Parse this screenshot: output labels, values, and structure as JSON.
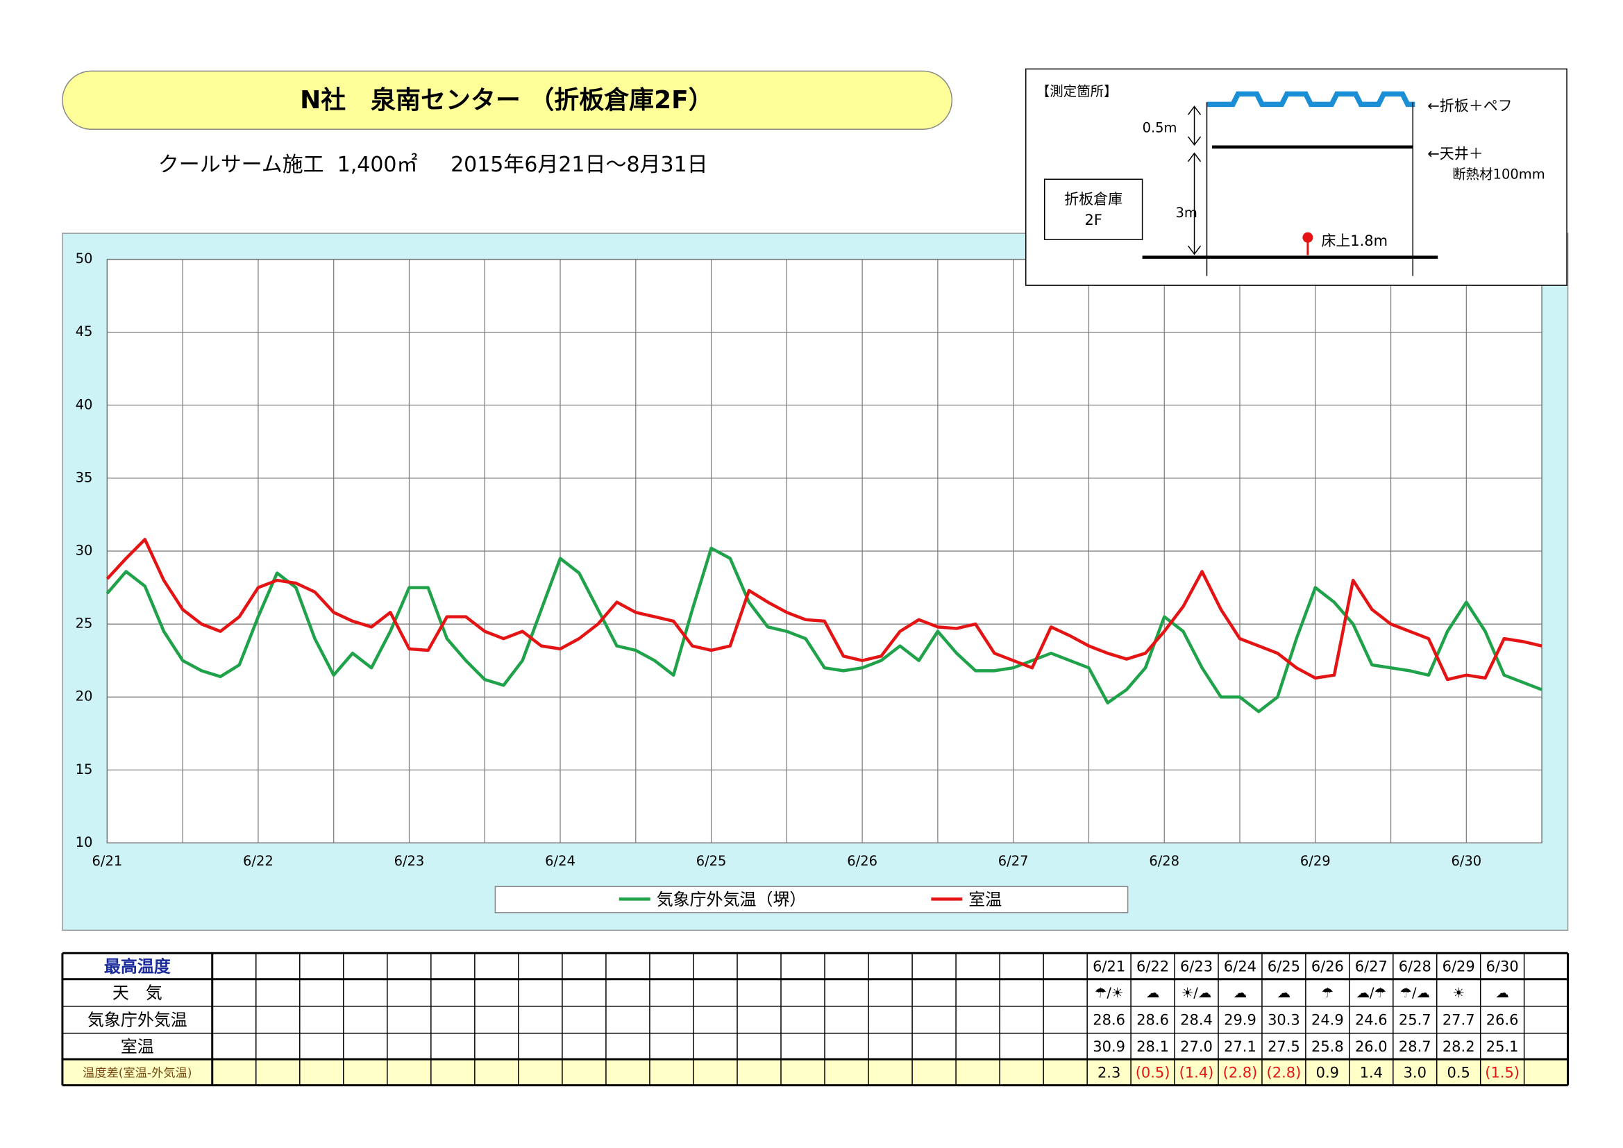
{
  "header": {
    "title": "N社　泉南センター （折板倉庫2F）",
    "subtitle": "クールサーム施工  1,400㎡     2015年6月21日～8月31日"
  },
  "diagram": {
    "title": "【測定箇所】",
    "roof": "←折板＋ペフ",
    "gap": "0.5m",
    "ceiling": "←天井＋",
    "insulation": "断熱材100mm",
    "room": "折板倉庫",
    "floor": "2F",
    "height": "3m",
    "sensor": "床上1.8m"
  },
  "chart_data": {
    "type": "line",
    "grid": true,
    "legend": "bottom",
    "x": [
      0,
      0.125,
      0.25,
      0.375,
      0.5,
      0.625,
      0.75,
      0.875,
      1,
      1.125,
      1.25,
      1.375,
      1.5,
      1.625,
      1.75,
      1.875,
      2,
      2.125,
      2.25,
      2.375,
      2.5,
      2.625,
      2.75,
      2.875,
      3,
      3.125,
      3.25,
      3.375,
      3.5,
      3.625,
      3.75,
      3.875,
      4,
      4.125,
      4.25,
      4.375,
      4.5,
      4.625,
      4.75,
      4.875,
      5,
      5.125,
      5.25,
      5.375,
      5.5,
      5.625,
      5.75,
      5.875,
      6,
      6.125,
      6.25,
      6.375,
      6.5,
      6.625,
      6.75,
      6.875,
      7,
      7.125,
      7.25,
      7.375,
      7.5,
      7.625,
      7.75,
      7.875,
      8,
      8.125,
      8.25,
      8.375,
      8.5,
      8.625,
      8.75,
      8.875,
      9,
      9.125,
      9.25,
      9.375,
      9.5
    ],
    "xlim": [
      0,
      9.5
    ],
    "xticks": [
      {
        "value": 0,
        "label": "6/21"
      },
      {
        "value": 1,
        "label": "6/22"
      },
      {
        "value": 2,
        "label": "6/23"
      },
      {
        "value": 3,
        "label": "6/24"
      },
      {
        "value": 4,
        "label": "6/25"
      },
      {
        "value": 5,
        "label": "6/26"
      },
      {
        "value": 6,
        "label": "6/27"
      },
      {
        "value": 7,
        "label": "6/28"
      },
      {
        "value": 8,
        "label": "6/29"
      },
      {
        "value": 9,
        "label": "6/30"
      }
    ],
    "ylim": [
      10,
      50
    ],
    "yticks": [
      10,
      15,
      20,
      25,
      30,
      35,
      40,
      45,
      50
    ],
    "series": [
      {
        "name": "気象庁外気温（堺）",
        "color": "#1fa24a",
        "values": [
          27.1,
          28.6,
          27.6,
          24.5,
          22.5,
          21.8,
          21.4,
          22.2,
          25.5,
          28.5,
          27.5,
          24.0,
          21.5,
          23.0,
          22.0,
          24.5,
          27.5,
          27.5,
          24.0,
          22.5,
          21.2,
          20.8,
          22.5,
          26.0,
          29.5,
          28.5,
          26.0,
          23.5,
          23.2,
          22.5,
          21.5,
          26.0,
          30.2,
          29.5,
          26.5,
          24.8,
          24.5,
          24.0,
          22.0,
          21.8,
          22.0,
          22.5,
          23.5,
          22.5,
          24.5,
          23.0,
          21.8,
          21.8,
          22.0,
          22.5,
          23.0,
          22.5,
          22.0,
          19.6,
          20.5,
          22.0,
          25.5,
          24.5,
          22.0,
          20.0,
          20.0,
          19.0,
          20.0,
          24.0,
          27.5,
          26.5,
          25.0,
          22.2,
          22.0,
          21.8,
          21.5,
          24.5,
          26.5,
          24.5,
          21.5,
          21.0,
          20.5
        ]
      },
      {
        "name": "室温",
        "color": "#e41414",
        "values": [
          28.1,
          29.5,
          30.8,
          28.0,
          26.0,
          25.0,
          24.5,
          25.5,
          27.5,
          28.0,
          27.8,
          27.2,
          25.8,
          25.2,
          24.8,
          25.8,
          23.3,
          23.2,
          25.5,
          25.5,
          24.5,
          24.0,
          24.5,
          23.5,
          23.3,
          24.0,
          25.0,
          26.5,
          25.8,
          25.5,
          25.2,
          23.5,
          23.2,
          23.5,
          27.3,
          26.5,
          25.8,
          25.3,
          25.2,
          22.8,
          22.5,
          22.8,
          24.5,
          25.3,
          24.8,
          24.7,
          25.0,
          23.0,
          22.5,
          22.0,
          24.8,
          24.2,
          23.5,
          23.0,
          22.6,
          23.0,
          24.5,
          26.2,
          28.6,
          26.0,
          24.0,
          23.5,
          23.0,
          22.0,
          21.3,
          21.5,
          28.0,
          26.0,
          25.0,
          24.5,
          24.0,
          21.2,
          21.5,
          21.3,
          24.0,
          23.8,
          23.5
        ]
      }
    ]
  },
  "table": {
    "dates": [
      "6/21",
      "6/22",
      "6/23",
      "6/24",
      "6/25",
      "6/26",
      "6/27",
      "6/28",
      "6/29",
      "6/30"
    ],
    "rows": [
      {
        "label": "最高温度"
      },
      {
        "label": "天　気",
        "cells": [
          "☂/☀",
          "☁",
          "☀/☁",
          "☁",
          "☁",
          "☂",
          "☁/☂",
          "☂/☁",
          "☀",
          "☁"
        ]
      },
      {
        "label": "気象庁外気温",
        "cells": [
          "28.6",
          "28.6",
          "28.4",
          "29.9",
          "30.3",
          "24.9",
          "24.6",
          "25.7",
          "27.7",
          "26.6"
        ]
      },
      {
        "label": "室温",
        "cells": [
          "30.9",
          "28.1",
          "27.0",
          "27.1",
          "27.5",
          "25.8",
          "26.0",
          "28.7",
          "28.2",
          "25.1"
        ]
      },
      {
        "label": "温度差(室温-外気温)",
        "cells": [
          "2.3",
          "(0.5)",
          "(1.4)",
          "(2.8)",
          "(2.8)",
          "0.9",
          "1.4",
          "3.0",
          "0.5",
          "(1.5)"
        ]
      }
    ]
  }
}
